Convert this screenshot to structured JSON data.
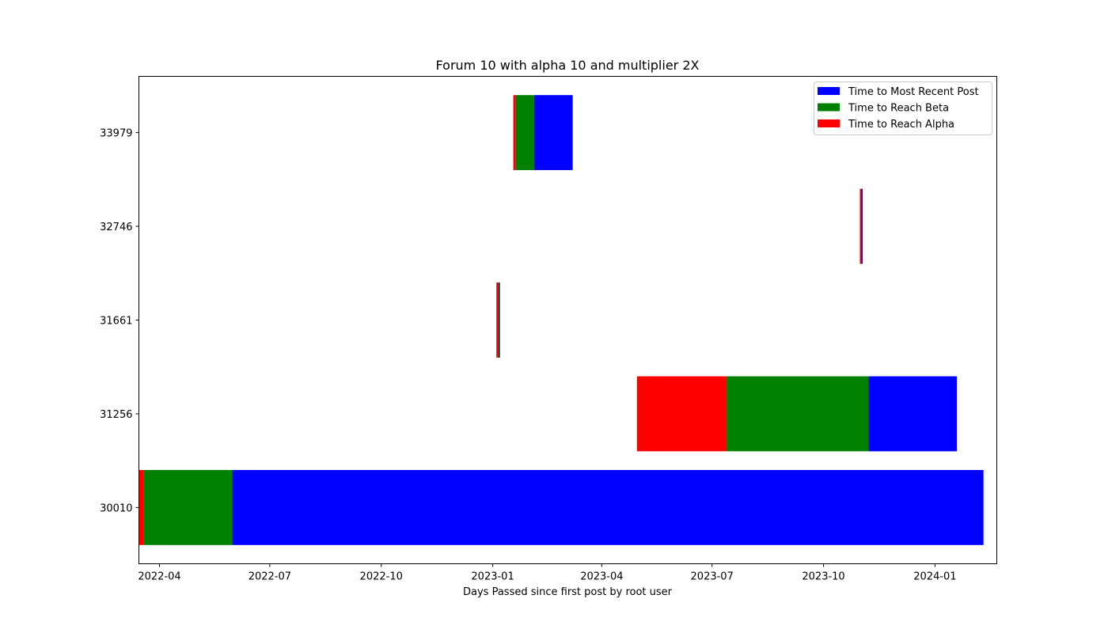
{
  "chart_data": {
    "type": "bar",
    "orientation": "horizontal",
    "stacking": "sequential",
    "title": "Forum 10 with alpha 10 and multiplier 2X",
    "xlabel": "Days Passed since first post by root user",
    "ylabel": "",
    "xlim": [
      "2022-03-15",
      "2024-02-21"
    ],
    "x_ticks": [
      "2022-04",
      "2022-07",
      "2022-10",
      "2023-01",
      "2023-04",
      "2023-07",
      "2023-10",
      "2024-01"
    ],
    "categories": [
      "30010",
      "31256",
      "31661",
      "32746",
      "33979"
    ],
    "series": [
      {
        "name": "Time to Most Recent Post",
        "color": "#0000ff",
        "start": [
          "2022-05-31",
          "2023-11-07",
          "2023-01-05",
          "2023-11-01",
          "2023-02-04"
        ],
        "end": [
          "2024-02-10",
          "2024-01-19",
          "2023-01-07",
          "2023-11-02",
          "2023-03-08"
        ]
      },
      {
        "name": "Time to Reach Beta",
        "color": "#008000",
        "start": [
          "2022-03-19",
          "2023-07-13",
          "2023-01-05",
          "2023-10-31",
          "2023-01-20"
        ],
        "end": [
          "2022-05-31",
          "2023-11-07",
          "2023-01-05",
          "2023-11-01",
          "2023-02-04"
        ]
      },
      {
        "name": "Time to Reach Alpha",
        "color": "#ff0000",
        "start": [
          "2022-03-15",
          "2023-04-30",
          "2023-01-04",
          "2023-10-31",
          "2023-01-18"
        ],
        "end": [
          "2022-03-19",
          "2023-07-13",
          "2023-01-05",
          "2023-10-31",
          "2023-01-20"
        ]
      }
    ],
    "legend_location": "upper right",
    "grid": false
  }
}
